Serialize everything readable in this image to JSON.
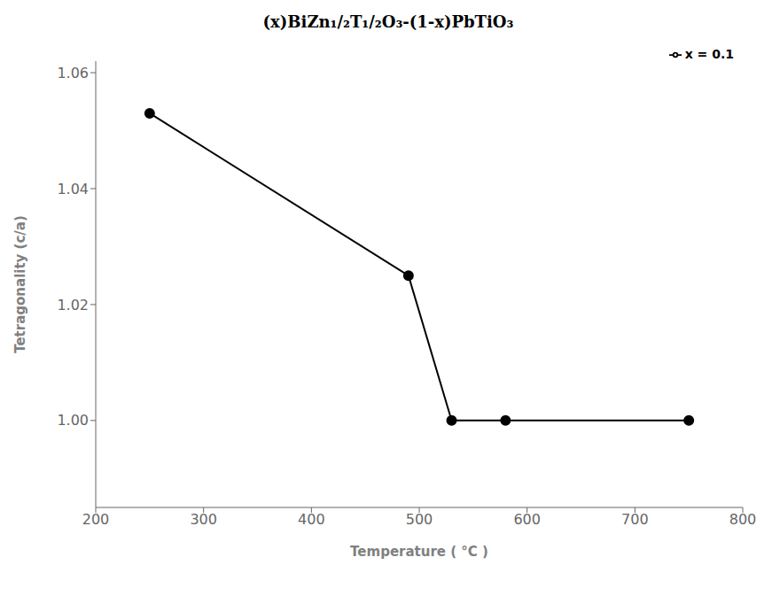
{
  "chart_data": {
    "type": "line",
    "title": "(x)BiZn₁/₂T₁/₂O₃-(1-x)PbTiO₃",
    "x_label": "Temperature ( °C )",
    "y_label": "Tetragonality (c/a)",
    "x": [
      250,
      490,
      530,
      580,
      750
    ],
    "series": [
      {
        "name": "x = 0.1",
        "color": "#000000",
        "marker": "circle",
        "values": [
          1.053,
          1.025,
          1.0,
          1.0,
          1.0
        ]
      }
    ],
    "xlim": [
      200,
      800
    ],
    "xticks": [
      200,
      300,
      400,
      500,
      600,
      700,
      800
    ],
    "ylim": [
      0.985,
      1.062
    ],
    "yticks": [
      {
        "value": 1.0,
        "label": "1.00"
      },
      1.02,
      1.04,
      1.06
    ],
    "grid": false,
    "legend": "upper right"
  }
}
